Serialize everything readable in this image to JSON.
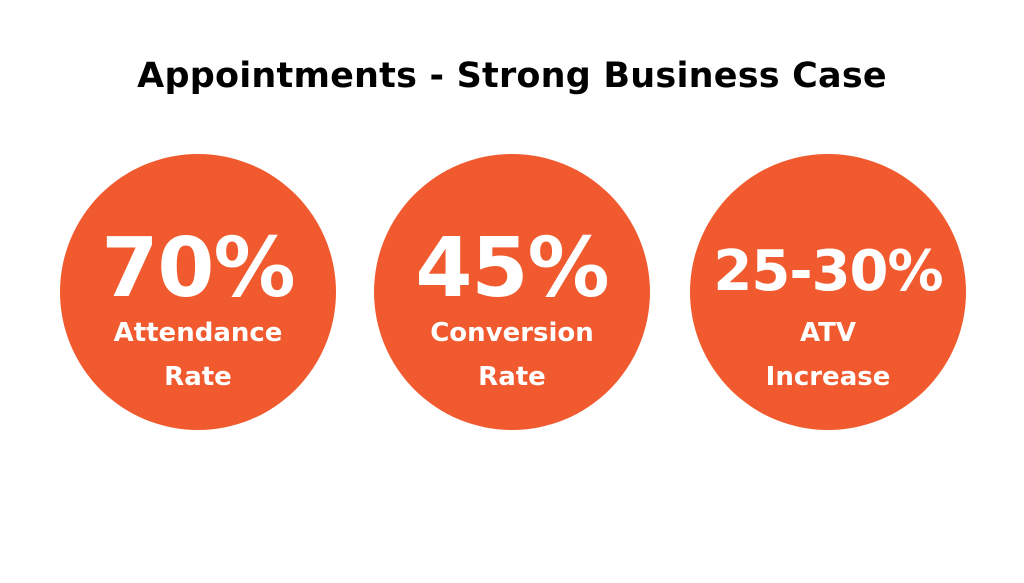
{
  "title": "Appointments - Strong Business Case",
  "colors": {
    "circle": "#f05a2e",
    "text_on_circle": "#ffffff",
    "title": "#000000"
  },
  "stats": [
    {
      "value": "70%",
      "label_line1": "Attendance",
      "label_line2": "Rate"
    },
    {
      "value": "45%",
      "label_line1": "Conversion",
      "label_line2": "Rate"
    },
    {
      "value": "25-30%",
      "label_line1": "ATV",
      "label_line2": "Increase"
    }
  ]
}
